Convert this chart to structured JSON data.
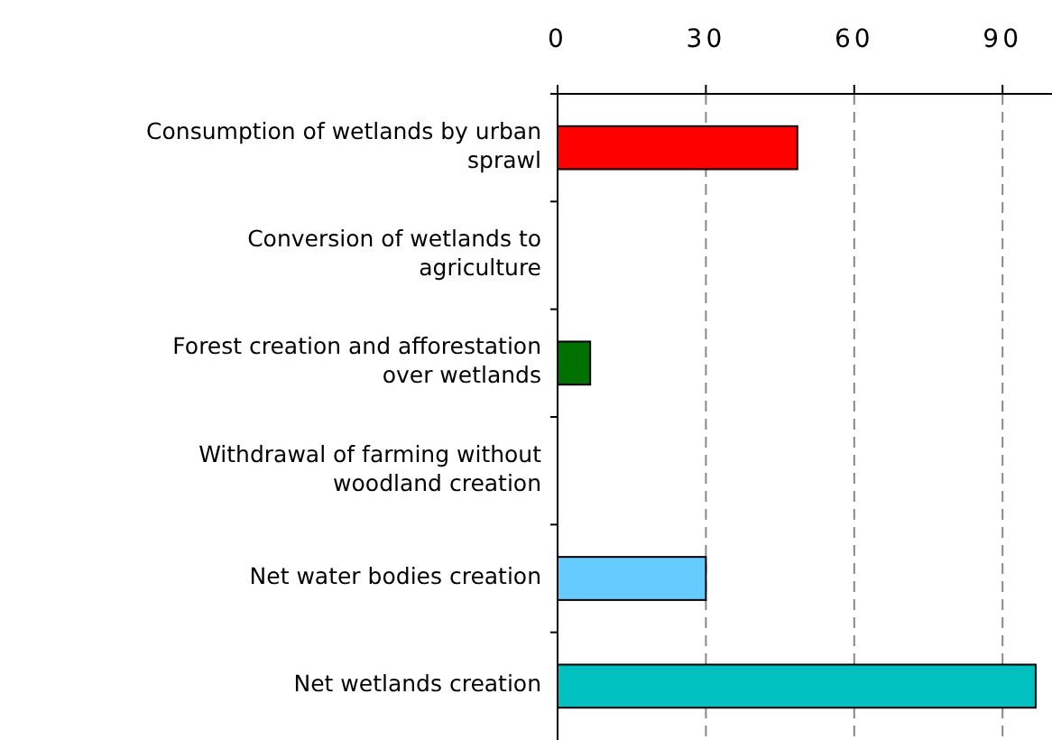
{
  "chart_data": {
    "type": "bar",
    "orientation": "horizontal",
    "categories": [
      "Consumption of wetlands by urban sprawl",
      "Conversion of wetlands to agriculture",
      "Forest creation and afforestation over wetlands",
      "Withdrawal of farming without woodland creation",
      "Net water bodies creation",
      "Net wetlands creation"
    ],
    "values": [
      48.5,
      0,
      6.6,
      0,
      30,
      96.7
    ],
    "colors": [
      "#ff0000",
      "#ff0000",
      "#007000",
      "#007000",
      "#66ccff",
      "#00c0c0"
    ],
    "xlim": [
      0,
      100
    ],
    "xticks": [
      0,
      30,
      60,
      90
    ],
    "grid": "x",
    "line_style": "dashed"
  }
}
